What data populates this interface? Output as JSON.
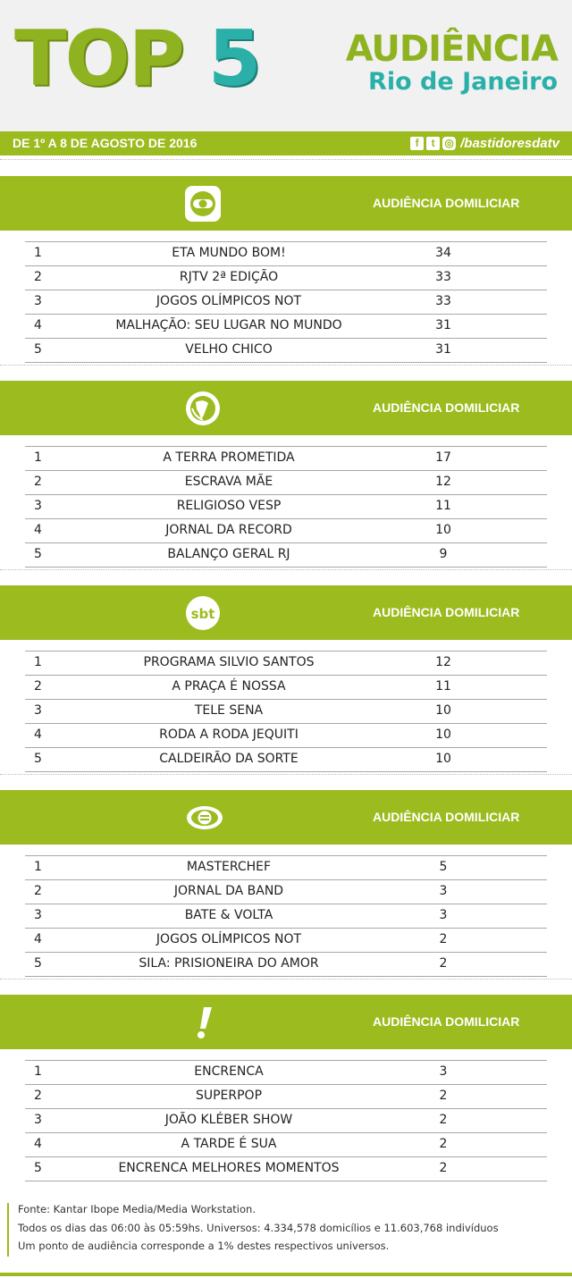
{
  "header": {
    "top": "TOP ",
    "five": "5",
    "audiencia": "AUDIÊNCIA",
    "city": "Rio de Janeiro"
  },
  "band": {
    "period": "DE 1º A 8 DE AGOSTO DE 2016",
    "handle": "/bastidoresdatv",
    "icons": [
      "facebook-icon",
      "twitter-icon",
      "instagram-icon"
    ]
  },
  "colors": {
    "accent_green": "#9cbb1e",
    "accent_teal": "#2ab0a8"
  },
  "sections": [
    {
      "network_icon": "globo-logo",
      "label": "AUDIÊNCIA DOMILICIAR",
      "rows": [
        {
          "rank": "1",
          "program": "ETA MUNDO BOM!",
          "value": "34"
        },
        {
          "rank": "2",
          "program": "RJTV 2ª EDIÇÃO",
          "value": "33"
        },
        {
          "rank": "3",
          "program": "JOGOS OLÍMPICOS NOT",
          "value": "33"
        },
        {
          "rank": "4",
          "program": "MALHAÇÃO: SEU LUGAR NO MUNDO",
          "value": "31"
        },
        {
          "rank": "5",
          "program": "VELHO CHICO",
          "value": "31"
        }
      ]
    },
    {
      "network_icon": "record-logo",
      "label": "AUDIÊNCIA DOMILICIAR",
      "rows": [
        {
          "rank": "1",
          "program": "A TERRA PROMETIDA",
          "value": "17"
        },
        {
          "rank": "2",
          "program": "ESCRAVA MÃE",
          "value": "12"
        },
        {
          "rank": "3",
          "program": "RELIGIOSO VESP",
          "value": "11"
        },
        {
          "rank": "4",
          "program": "JORNAL DA RECORD",
          "value": "10"
        },
        {
          "rank": "5",
          "program": "BALANÇO GERAL RJ",
          "value": "9"
        }
      ]
    },
    {
      "network_icon": "sbt-logo",
      "label": "AUDIÊNCIA DOMILICIAR",
      "rows": [
        {
          "rank": "1",
          "program": "PROGRAMA SILVIO SANTOS",
          "value": "12"
        },
        {
          "rank": "2",
          "program": "A PRAÇA É NOSSA",
          "value": "11"
        },
        {
          "rank": "3",
          "program": "TELE SENA",
          "value": "10"
        },
        {
          "rank": "4",
          "program": "RODA A RODA JEQUITI",
          "value": "10"
        },
        {
          "rank": "5",
          "program": "CALDEIRÃO DA SORTE",
          "value": "10"
        }
      ]
    },
    {
      "network_icon": "band-logo",
      "label": "AUDIÊNCIA DOMILICIAR",
      "rows": [
        {
          "rank": "1",
          "program": "MASTERCHEF",
          "value": "5"
        },
        {
          "rank": "2",
          "program": "JORNAL DA BAND",
          "value": "3"
        },
        {
          "rank": "3",
          "program": "BATE & VOLTA",
          "value": "3"
        },
        {
          "rank": "4",
          "program": "JOGOS OLÍMPICOS NOT",
          "value": "2"
        },
        {
          "rank": "5",
          "program": "SILA: PRISIONEIRA DO AMOR",
          "value": "2"
        }
      ]
    },
    {
      "network_icon": "redetv-logo",
      "label": "AUDIÊNCIA DOMILICIAR",
      "rows": [
        {
          "rank": "1",
          "program": "ENCRENCA",
          "value": "3"
        },
        {
          "rank": "2",
          "program": "SUPERPOP",
          "value": "2"
        },
        {
          "rank": "3",
          "program": "JOÃO KLÉBER SHOW",
          "value": "2"
        },
        {
          "rank": "4",
          "program": "A TARDE É SUA",
          "value": "2"
        },
        {
          "rank": "5",
          "program": "ENCRENCA MELHORES MOMENTOS",
          "value": "2"
        }
      ]
    }
  ],
  "footer": {
    "line1": "Fonte: Kantar Ibope Media/Media Workstation.",
    "line2": "Todos os dias das 06:00 às 05:59hs. Universos: 4.334,578 domicílios e 11.603,768 indivíduos",
    "line3": "Um ponto de audiência corresponde a 1% destes respectivos universos."
  }
}
